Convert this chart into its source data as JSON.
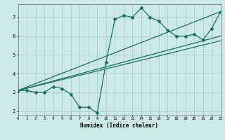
{
  "xlabel": "Humidex (Indice chaleur)",
  "bg_color": "#cce9e5",
  "line_color": "#1a6e64",
  "grid_color": "#aad4ce",
  "line1_x": [
    0,
    1,
    2,
    3,
    4,
    5,
    6,
    7,
    8,
    9,
    10,
    11,
    12,
    13,
    14,
    15,
    16,
    17,
    18,
    19,
    20,
    21,
    22,
    23
  ],
  "line1_y": [
    3.1,
    3.1,
    3.0,
    3.0,
    3.3,
    3.2,
    2.9,
    2.2,
    2.2,
    1.9,
    4.6,
    6.9,
    7.1,
    7.0,
    7.5,
    7.0,
    6.8,
    6.3,
    6.0,
    6.0,
    6.1,
    5.8,
    6.4,
    7.3
  ],
  "line2_x": [
    0,
    23
  ],
  "line2_y": [
    3.1,
    7.3
  ],
  "line3_x": [
    0,
    23
  ],
  "line3_y": [
    3.1,
    6.0
  ],
  "line4_x": [
    0,
    23
  ],
  "line4_y": [
    3.1,
    5.75
  ],
  "xlim": [
    0,
    23
  ],
  "ylim": [
    1.8,
    7.7
  ],
  "xticks": [
    0,
    1,
    2,
    3,
    4,
    5,
    6,
    7,
    8,
    9,
    10,
    11,
    12,
    13,
    14,
    15,
    16,
    17,
    18,
    19,
    20,
    21,
    22,
    23
  ],
  "yticks": [
    2,
    3,
    4,
    5,
    6,
    7
  ]
}
